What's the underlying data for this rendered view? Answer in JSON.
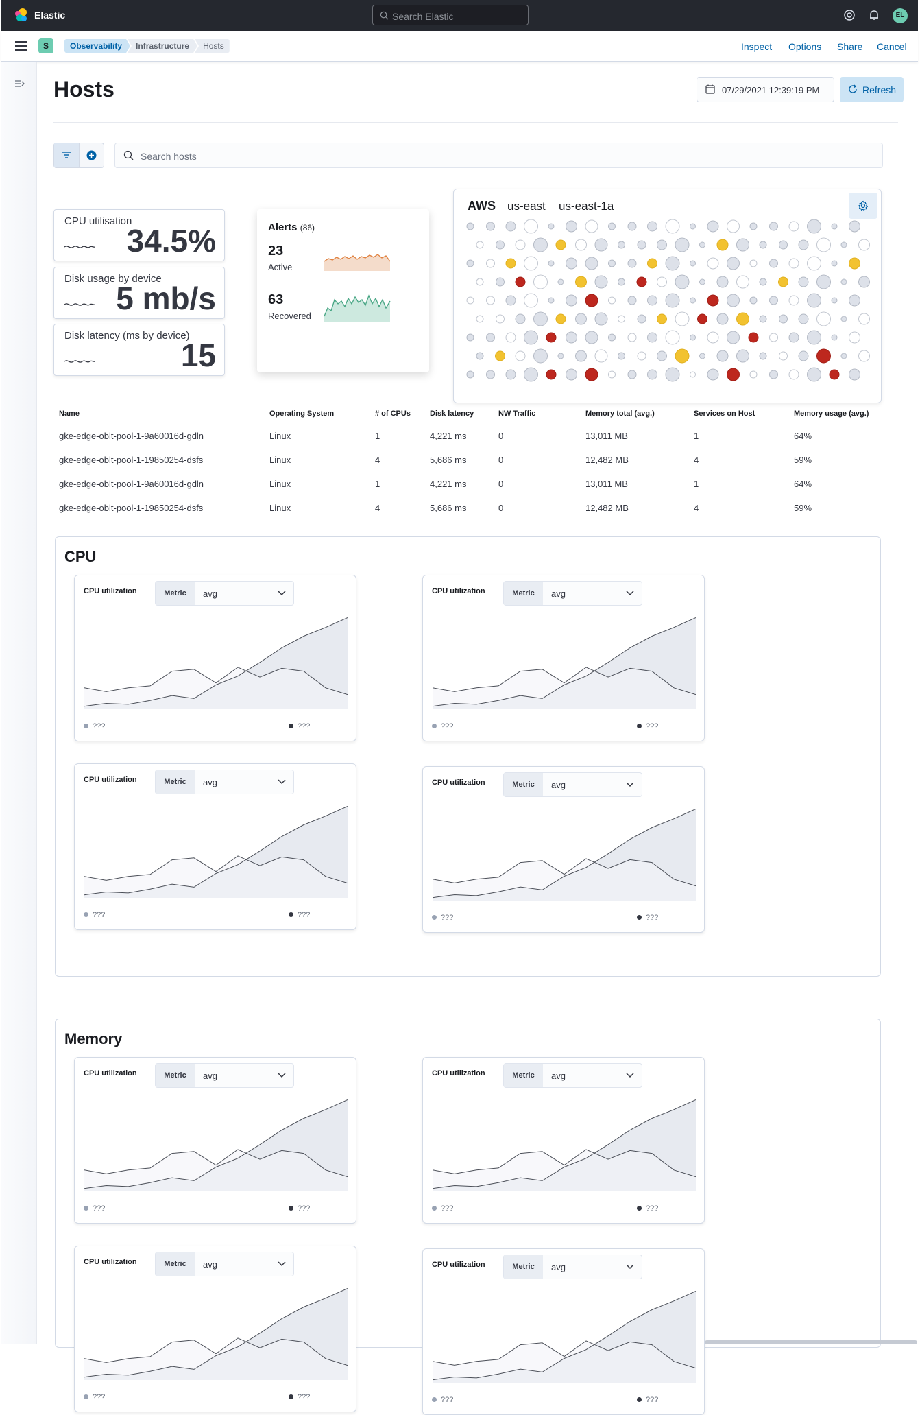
{
  "header": {
    "brand": "Elastic",
    "search_placeholder": "Search Elastic",
    "avatar": "EL",
    "icons": [
      "help-icon",
      "bell-icon"
    ]
  },
  "subheader": {
    "space": "S",
    "breadcrumbs": [
      "Observability",
      "Infrastructure",
      "Hosts"
    ],
    "actions": [
      "Inspect",
      "Options",
      "Share",
      "Cancel"
    ]
  },
  "page": {
    "title": "Hosts",
    "date": "07/29/2021 12:39:19 PM",
    "refresh": "Refresh",
    "search_placeholder": "Search hosts"
  },
  "kpis": [
    {
      "label": "CPU utilisation",
      "value": "34.5%"
    },
    {
      "label": "Disk usage by device",
      "value": "5 mb/s"
    },
    {
      "label": "Disk latency (ms by device)",
      "value": "15"
    }
  ],
  "alerts": {
    "title": "Alerts",
    "count": "(86)",
    "active_count": "23",
    "active_label": "Active",
    "recovered_count": "63",
    "recovered_label": "Recovered"
  },
  "aws": {
    "provider": "AWS",
    "region": "us-east",
    "zone": "us-east-1a"
  },
  "table": {
    "columns": [
      "Name",
      "Operating System",
      "# of CPUs",
      "Disk latency",
      "NW Traffic",
      "Memory total (avg.)",
      "Services on Host",
      "Memory usage (avg.)"
    ],
    "rows": [
      [
        "gke-edge-oblt-pool-1-9a60016d-gdln",
        "Linux",
        "1",
        "4,221 ms",
        "0",
        "13,011 MB",
        "1",
        "64%"
      ],
      [
        "gke-edge-oblt-pool-1-19850254-dsfs",
        "Linux",
        "4",
        "5,686 ms",
        "0",
        "12,482 MB",
        "4",
        "59%"
      ],
      [
        "gke-edge-oblt-pool-1-9a60016d-gdln",
        "Linux",
        "1",
        "4,221 ms",
        "0",
        "13,011 MB",
        "1",
        "64%"
      ],
      [
        "gke-edge-oblt-pool-1-19850254-dsfs",
        "Linux",
        "4",
        "5,686 ms",
        "0",
        "12,482 MB",
        "4",
        "59%"
      ]
    ]
  },
  "sections": [
    {
      "title": "CPU"
    },
    {
      "title": "Memory"
    }
  ],
  "mini_chart": {
    "title": "CPU utilization",
    "metric_label": "Metric",
    "metric_value": "avg",
    "legend_a": "???",
    "legend_b": "???"
  },
  "chart_data": {
    "type": "area",
    "title": "CPU utilization",
    "x": [
      0,
      1,
      2,
      3,
      4,
      5,
      6,
      7,
      8,
      9,
      10,
      11,
      12
    ],
    "series": [
      {
        "values": [
          3,
          6,
          5,
          9,
          14,
          11,
          25,
          34,
          48,
          63,
          75,
          84,
          94
        ]
      },
      {
        "values": [
          22,
          18,
          22,
          24,
          39,
          41,
          27,
          43,
          33,
          42,
          39,
          22,
          15
        ]
      }
    ],
    "ylim": [
      0,
      100
    ],
    "grid": false
  }
}
